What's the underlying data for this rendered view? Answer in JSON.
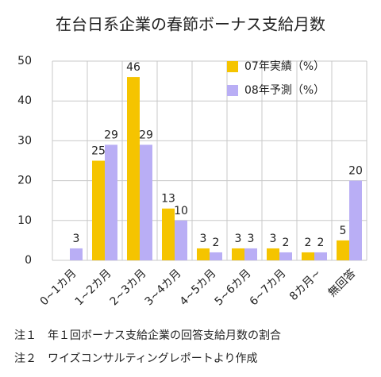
{
  "chart_data": {
    "type": "bar",
    "title": "在台日系企業の春節ボーナス支給月数",
    "categories": [
      "0~1カ月",
      "1~2カ月",
      "2~3カ月",
      "3~4カ月",
      "4~5カ月",
      "5~6カ月",
      "6~7カ月",
      "8カ月~",
      "無回答"
    ],
    "series": [
      {
        "name": "07年実績（%）",
        "color": "#f5c400",
        "values": [
          null,
          25,
          46,
          13,
          3,
          3,
          3,
          2,
          5
        ]
      },
      {
        "name": "08年予測（%）",
        "color": "#b9aef5",
        "values": [
          3,
          29,
          29,
          10,
          2,
          3,
          2,
          2,
          20
        ]
      }
    ],
    "ylim": [
      0,
      50
    ],
    "yticks": [
      0,
      10,
      20,
      30,
      40,
      50
    ],
    "grid": true,
    "legend": "upper right",
    "notes": [
      "注１　年１回ボーナス支給企業の回答支給月数の割合",
      "注２　ワイズコンサルティングレポートより作成"
    ]
  }
}
